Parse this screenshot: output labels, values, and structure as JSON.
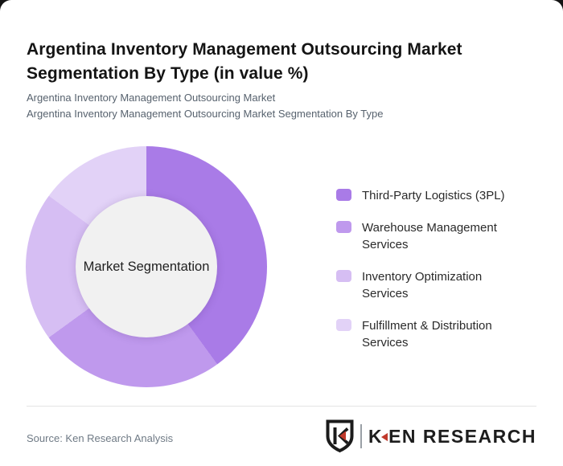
{
  "page": {
    "title": "Argentina Inventory Management Outsourcing Market Segmentation By Type (in value %)",
    "subtitle_line1": "Argentina Inventory Management Outsourcing Market",
    "subtitle_line2": "Argentina Inventory Management Outsourcing Market Segmentation By Type"
  },
  "chart_data": {
    "type": "pie",
    "variant": "donut",
    "title": "Argentina Inventory Management Outsourcing Market Segmentation By Type (in value %)",
    "unit": "value %",
    "center_label": "Market Segmentation",
    "start_angle_deg": 0,
    "direction": "clockwise",
    "legend_position": "right",
    "values_labeled_on_chart": false,
    "hole_color": "#f1f1f1",
    "segments": [
      {
        "label": "Third-Party Logistics (3PL)",
        "value": 40,
        "color": "#a97be7"
      },
      {
        "label": "Warehouse Management Services",
        "value": 25,
        "color": "#bf99ed"
      },
      {
        "label": "Inventory Optimization Services",
        "value": 20,
        "color": "#d6bef3"
      },
      {
        "label": "Fulfillment & Distribution Services",
        "value": 15,
        "color": "#e2d2f7"
      }
    ]
  },
  "footer": {
    "source": "Source: Ken Research Analysis",
    "logo": {
      "shield_letter": "K",
      "text_k": "K",
      "text_rest": "EN RESEARCH",
      "accent_color": "#c0392b",
      "ink_color": "#1d1d1d"
    }
  }
}
